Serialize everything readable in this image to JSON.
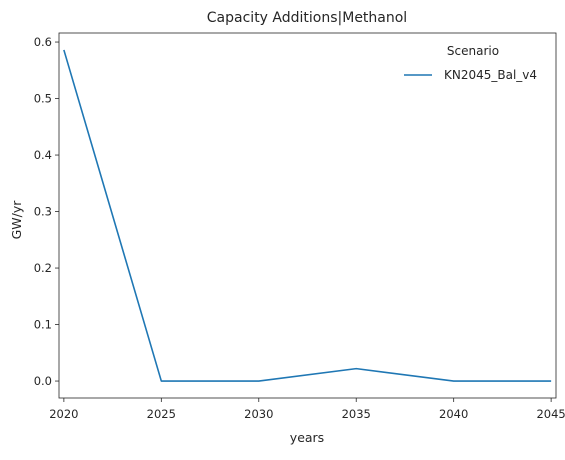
{
  "chart_data": {
    "type": "line",
    "title": "Capacity Additions|Methanol",
    "xlabel": "years",
    "ylabel": "GW/yr",
    "x": [
      2020,
      2025,
      2030,
      2035,
      2040,
      2045
    ],
    "xlim": [
      2019.75,
      2045.25
    ],
    "ylim": [
      -0.03,
      0.616
    ],
    "xticks": [
      2020,
      2025,
      2030,
      2035,
      2040,
      2045
    ],
    "yticks": [
      0.0,
      0.1,
      0.2,
      0.3,
      0.4,
      0.5,
      0.6
    ],
    "ytick_labels": [
      "0.0",
      "0.1",
      "0.2",
      "0.3",
      "0.4",
      "0.5",
      "0.6"
    ],
    "grid": false,
    "legend": {
      "title": "Scenario",
      "placement": "top-right"
    },
    "series": [
      {
        "name": "KN2045_Bal_v4",
        "color": "#1f77b4",
        "values": [
          0.586,
          0.0,
          0.0,
          0.022,
          0.0,
          0.0
        ]
      }
    ]
  }
}
